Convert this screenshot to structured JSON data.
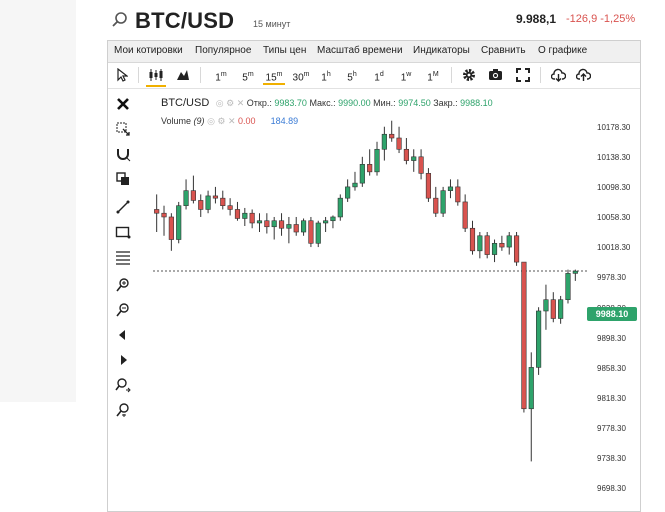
{
  "header": {
    "symbol": "BTC/USD",
    "timeframe": "15 минут",
    "price": "9.988,1",
    "change": "-126,9 -1,25%"
  },
  "menu": [
    "Мои котировки",
    "Популярное",
    "Типы цен",
    "Масштаб времени",
    "Индикаторы",
    "Сравнить",
    "О графике"
  ],
  "timeframes": [
    {
      "n": "1",
      "u": "m"
    },
    {
      "n": "5",
      "u": "m"
    },
    {
      "n": "15",
      "u": "m"
    },
    {
      "n": "30",
      "u": "m"
    },
    {
      "n": "1",
      "u": "h"
    },
    {
      "n": "5",
      "u": "h"
    },
    {
      "n": "1",
      "u": "d"
    },
    {
      "n": "1",
      "u": "w"
    },
    {
      "n": "1",
      "u": "M"
    }
  ],
  "legend": {
    "symbol": "BTC/USD",
    "open_label": "Откр.:",
    "open": "9983.70",
    "high_label": "Макс.:",
    "high": "9990.00",
    "low_label": "Мин.:",
    "low": "9974.50",
    "close_label": "Закр.:",
    "close": "9988.10",
    "volume_label": "Volume",
    "volume_param": "(9)",
    "vol_value1": "0.00",
    "vol_value2": "184.89"
  },
  "price_tag": "9988.10",
  "colors": {
    "up": "#2ea36b",
    "down": "#d9534f",
    "tag": "#2ea36b",
    "accent": "#f0b000"
  },
  "chart_data": {
    "type": "candlestick",
    "y_ticks": [
      "10178.30",
      "10138.30",
      "10098.30",
      "10058.30",
      "10018.30",
      "9978.30",
      "9938.30",
      "9898.30",
      "9858.30",
      "9818.30",
      "9778.30",
      "9738.30",
      "9698.30"
    ],
    "ylim": [
      9690,
      10200
    ],
    "last_price_line": 9988.1,
    "candles": [
      [
        10070,
        10090,
        10040,
        10065
      ],
      [
        10065,
        10075,
        10035,
        10060
      ],
      [
        10060,
        10065,
        10015,
        10030
      ],
      [
        10030,
        10080,
        10025,
        10075
      ],
      [
        10075,
        10110,
        10070,
        10095
      ],
      [
        10095,
        10115,
        10078,
        10082
      ],
      [
        10082,
        10090,
        10060,
        10070
      ],
      [
        10070,
        10095,
        10065,
        10088
      ],
      [
        10088,
        10100,
        10078,
        10085
      ],
      [
        10085,
        10095,
        10070,
        10075
      ],
      [
        10075,
        10085,
        10062,
        10070
      ],
      [
        10070,
        10080,
        10055,
        10058
      ],
      [
        10058,
        10072,
        10048,
        10065
      ],
      [
        10065,
        10070,
        10045,
        10052
      ],
      [
        10052,
        10065,
        10040,
        10055
      ],
      [
        10055,
        10065,
        10038,
        10047
      ],
      [
        10047,
        10060,
        10030,
        10055
      ],
      [
        10055,
        10065,
        10035,
        10045
      ],
      [
        10045,
        10060,
        10025,
        10050
      ],
      [
        10050,
        10060,
        10035,
        10040
      ],
      [
        10040,
        10058,
        10035,
        10055
      ],
      [
        10055,
        10060,
        10020,
        10025
      ],
      [
        10025,
        10055,
        10020,
        10052
      ],
      [
        10052,
        10060,
        10040,
        10055
      ],
      [
        10055,
        10062,
        10045,
        10060
      ],
      [
        10060,
        10090,
        10055,
        10085
      ],
      [
        10085,
        10110,
        10080,
        10100
      ],
      [
        10100,
        10120,
        10095,
        10105
      ],
      [
        10105,
        10140,
        10100,
        10130
      ],
      [
        10130,
        10150,
        10115,
        10120
      ],
      [
        10120,
        10160,
        10115,
        10150
      ],
      [
        10150,
        10180,
        10135,
        10170
      ],
      [
        10170,
        10188,
        10160,
        10165
      ],
      [
        10165,
        10180,
        10145,
        10150
      ],
      [
        10150,
        10165,
        10130,
        10135
      ],
      [
        10135,
        10150,
        10120,
        10140
      ],
      [
        10140,
        10150,
        10110,
        10118
      ],
      [
        10118,
        10125,
        10080,
        10085
      ],
      [
        10085,
        10100,
        10060,
        10065
      ],
      [
        10065,
        10100,
        10060,
        10095
      ],
      [
        10095,
        10110,
        10085,
        10100
      ],
      [
        10100,
        10110,
        10075,
        10080
      ],
      [
        10080,
        10090,
        10040,
        10045
      ],
      [
        10045,
        10055,
        10010,
        10015
      ],
      [
        10015,
        10040,
        10005,
        10035
      ],
      [
        10035,
        10040,
        10005,
        10010
      ],
      [
        10010,
        10030,
        10000,
        10025
      ],
      [
        10025,
        10035,
        10015,
        10020
      ],
      [
        10020,
        10040,
        10010,
        10035
      ],
      [
        10035,
        10040,
        9995,
        10000
      ],
      [
        10000,
        9995,
        9800,
        9805
      ],
      [
        9805,
        9880,
        9735,
        9860
      ],
      [
        9860,
        9940,
        9850,
        9935
      ],
      [
        9935,
        9970,
        9910,
        9950
      ],
      [
        9950,
        9960,
        9920,
        9925
      ],
      [
        9925,
        9955,
        9918,
        9950
      ],
      [
        9950,
        9990,
        9945,
        9985
      ],
      [
        9985,
        9990,
        9975,
        9988
      ]
    ]
  }
}
